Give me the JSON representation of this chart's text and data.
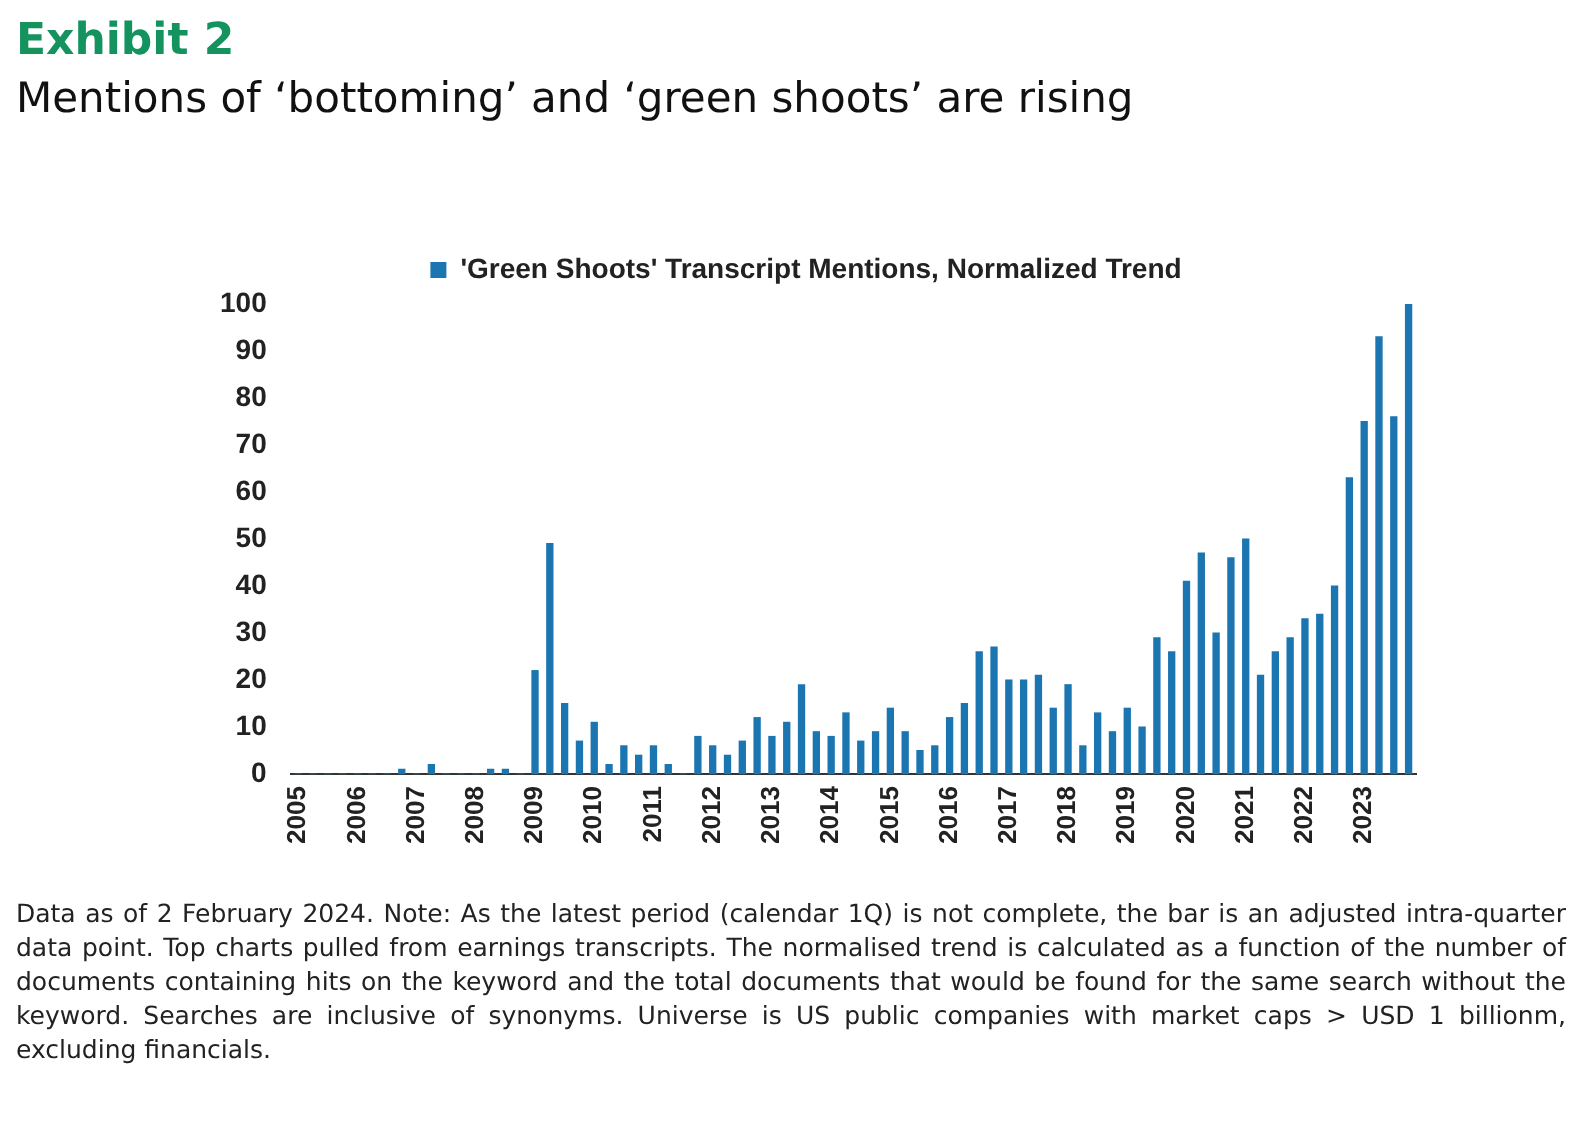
{
  "chart_data": {
    "type": "bar",
    "title": "Exhibit 2",
    "subtitle": "Mentions of ‘bottoming’ and ‘green shoots’ are rising",
    "categories": [
      "2005",
      null,
      null,
      null,
      "2006",
      null,
      null,
      null,
      "2007",
      null,
      null,
      null,
      "2008",
      null,
      null,
      null,
      "2009",
      null,
      null,
      null,
      "2010",
      null,
      null,
      null,
      "2011",
      null,
      null,
      null,
      "2012",
      null,
      null,
      null,
      "2013",
      null,
      null,
      null,
      "2014",
      null,
      null,
      null,
      "2015",
      null,
      null,
      null,
      "2016",
      null,
      null,
      null,
      "2017",
      null,
      null,
      null,
      "2018",
      null,
      null,
      null,
      "2019",
      null,
      null,
      null,
      "2020",
      null,
      null,
      null,
      "2021",
      null,
      null,
      null,
      "2022",
      null,
      null,
      null,
      "2023",
      null,
      null,
      null
    ],
    "series": [
      {
        "name": "'Green Shoots' Transcript Mentions, Normalized Trend",
        "color": "#1b75b0",
        "values": [
          0,
          0,
          0,
          0,
          0,
          0,
          0,
          1,
          0,
          2,
          0,
          0,
          0,
          1,
          1,
          0,
          22,
          49,
          15,
          7,
          11,
          2,
          6,
          4,
          6,
          2,
          0,
          8,
          6,
          4,
          7,
          12,
          8,
          11,
          19,
          9,
          8,
          13,
          7,
          9,
          14,
          9,
          5,
          6,
          12,
          15,
          26,
          27,
          20,
          20,
          21,
          14,
          19,
          6,
          13,
          9,
          14,
          10,
          29,
          26,
          41,
          47,
          30,
          46,
          50,
          21,
          26,
          29,
          33,
          34,
          40,
          63,
          75,
          93,
          76,
          100
        ]
      }
    ],
    "ylim": [
      0,
      100
    ],
    "yticks": [
      0,
      10,
      20,
      30,
      40,
      50,
      60,
      70,
      80,
      90,
      100
    ],
    "grid": false,
    "legend": "top",
    "annotations": [
      "Data as of 2 February 2024. Note: As the latest period (calendar 1Q) is not complete, the bar is an adjusted intra-quarter data point. Top charts pulled from earnings transcripts. The normalised trend is calculated as a function of the number of documents containing hits on the keyword and the total documents that would be found for the same search without the keyword. Searches are inclusive of synonyms. Universe is US public companies with market caps > USD 1 billionm, excluding financials."
    ]
  }
}
